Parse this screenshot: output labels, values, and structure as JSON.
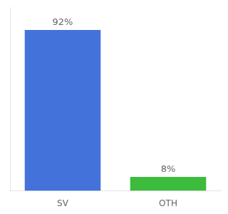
{
  "chart_data": {
    "type": "bar",
    "categories": [
      "SV",
      "OTH"
    ],
    "values": [
      92,
      8
    ],
    "value_labels": [
      "92%",
      "8%"
    ],
    "colors": [
      "#4472db",
      "#3dbb3d"
    ],
    "ylim": [
      0,
      105
    ],
    "data_labels": true,
    "tick_labels": "x",
    "grid": false
  }
}
